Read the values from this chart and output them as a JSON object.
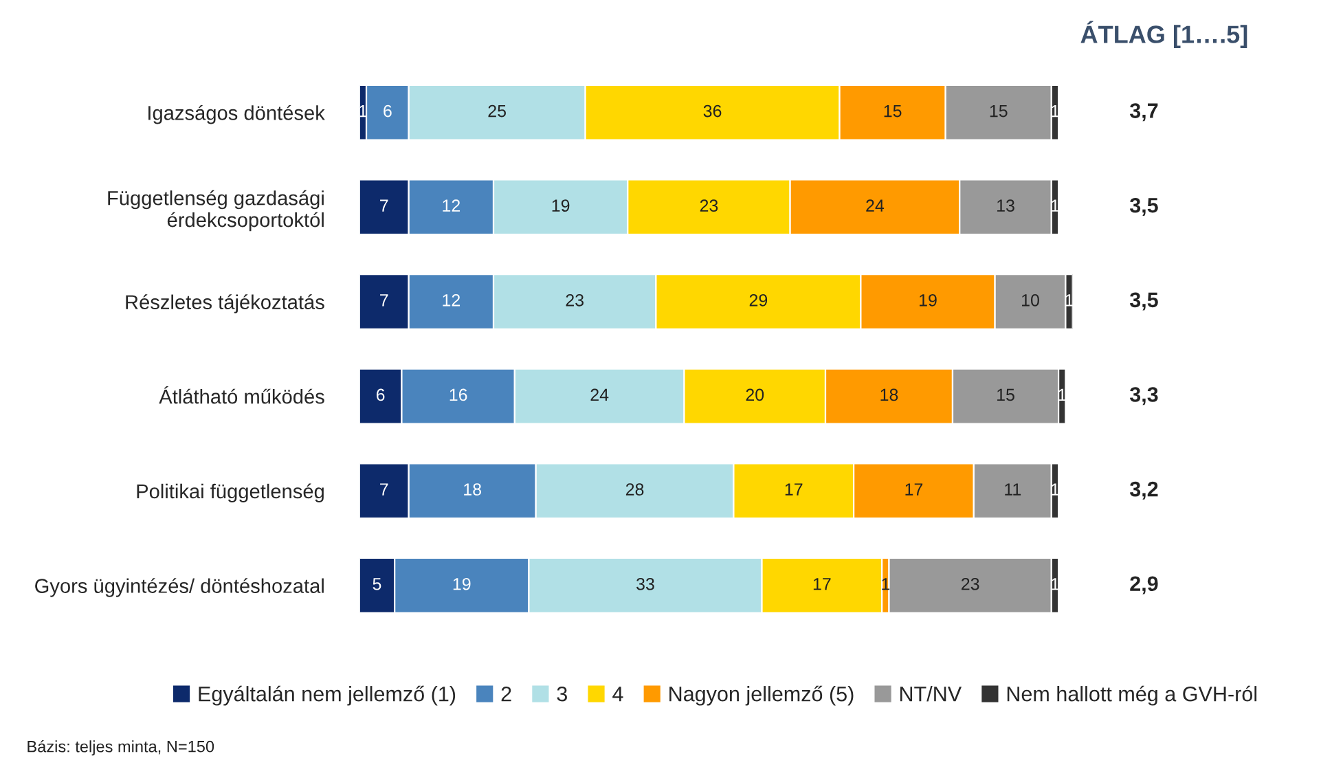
{
  "chart_data": {
    "type": "bar",
    "orientation": "horizontal",
    "stacked": true,
    "data_labels": true,
    "legend": "bottom",
    "grid": false,
    "tick_labels": "y",
    "categories": [
      "Igazságos döntések",
      "Függetlenség gazdasági\nérdekcsoportoktól",
      "Részletes tájékoztatás",
      "Átlátható működés",
      "Politikai függetlenség",
      "Gyors ügyintézés/ döntéshozatal"
    ],
    "series": [
      {
        "name": "Egyáltalán nem jellemző (1)",
        "color": "#0d2a6b",
        "values": [
          1,
          7,
          7,
          6,
          7,
          5
        ]
      },
      {
        "name": "2",
        "color": "#4a84bd",
        "values": [
          6,
          12,
          12,
          16,
          18,
          19
        ]
      },
      {
        "name": "3",
        "color": "#b1e0e6",
        "values": [
          25,
          19,
          23,
          24,
          28,
          33
        ]
      },
      {
        "name": "4",
        "color": "#ffd700",
        "values": [
          36,
          23,
          29,
          20,
          17,
          17
        ]
      },
      {
        "name": "Nagyon jellemző (5)",
        "color": "#ff9a00",
        "values": [
          15,
          24,
          19,
          18,
          17,
          1
        ]
      },
      {
        "name": "NT/NV",
        "color": "#999999",
        "values": [
          15,
          13,
          10,
          15,
          11,
          23
        ]
      },
      {
        "name": "Nem hallott még a GVH-ról",
        "color": "#333333",
        "values": [
          1,
          1,
          1,
          1,
          1,
          1
        ]
      }
    ],
    "annotations": [
      "ÁTLAG [1….5]",
      "3,7",
      "3,5",
      "3,5",
      "3,3",
      "3,2",
      "2,9",
      "Bázis: teljes minta, N=150"
    ]
  }
}
